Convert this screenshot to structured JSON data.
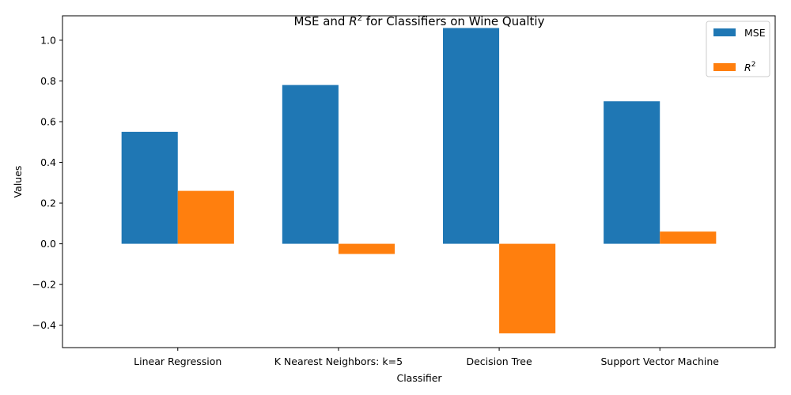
{
  "chart_data": {
    "type": "bar",
    "title": "MSE and R² for Classifiers on Wine Qualtiy",
    "title_main": "MSE and ",
    "title_r": "R",
    "title_sup": "2",
    "title_rest": " for Classifiers on Wine Qualtiy",
    "xlabel": "Classifier",
    "ylabel": "Values",
    "categories": [
      "Linear Regression",
      "K Nearest Neighbors: k=5",
      "Decision Tree",
      "Support Vector Machine"
    ],
    "series": [
      {
        "name": "MSE",
        "color": "#1f77b4",
        "values": [
          0.55,
          0.78,
          1.06,
          0.7
        ]
      },
      {
        "name": "R²",
        "color": "#ff7f0e",
        "values": [
          0.26,
          -0.05,
          -0.44,
          0.06
        ]
      }
    ],
    "yticks": [
      -0.4,
      -0.2,
      0.0,
      0.2,
      0.4,
      0.6,
      0.8,
      1.0
    ],
    "ytick_labels": [
      "−0.4",
      "−0.2",
      "0.0",
      "0.2",
      "0.4",
      "0.6",
      "0.8",
      "1.0"
    ],
    "ylim": [
      -0.51,
      1.12
    ],
    "legend": {
      "position": "top-right",
      "entries": [
        {
          "label": "MSE",
          "color": "#1f77b4"
        },
        {
          "label_main": "R",
          "label_sup": "2",
          "color": "#ff7f0e"
        }
      ]
    },
    "grid": false
  }
}
